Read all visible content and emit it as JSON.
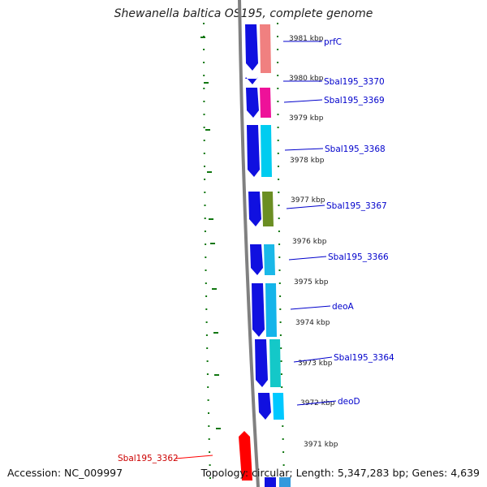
{
  "title": "Shewanella baltica OS195, complete genome",
  "footer": {
    "accession": "Accession: NC_009997",
    "summary": "Topology: circular; Length: 5,347,283 bp; Genes: 4,639"
  },
  "colors": {
    "backbone": "#808080",
    "forward_strand": "#1010e0",
    "reverse_strand": "#ff0000",
    "gene_label": "#0000cc",
    "reverse_label": "#cc0000",
    "tick_marks": "#117711"
  },
  "ticks": [
    "3981 kbp",
    "3980 kbp",
    "3979 kbp",
    "3978 kbp",
    "3977 kbp",
    "3976 kbp",
    "3975 kbp",
    "3974 kbp",
    "3973 kbp",
    "3972 kbp",
    "3971 kbp"
  ],
  "genes": [
    {
      "label": "prfC",
      "strand": "forward",
      "cog_color": "#f08080"
    },
    {
      "label": "Sbal195_3370",
      "strand": "forward",
      "cog_color": "#ffffff"
    },
    {
      "label": "Sbal195_3369",
      "strand": "forward",
      "cog_color": "#ee1199"
    },
    {
      "label": "Sbal195_3368",
      "strand": "forward",
      "cog_color": "#00ccf0"
    },
    {
      "label": "Sbal195_3367",
      "strand": "forward",
      "cog_color": "#6b8e23"
    },
    {
      "label": "Sbal195_3366",
      "strand": "forward",
      "cog_color": "#1ab8e8"
    },
    {
      "label": "deoA",
      "strand": "forward",
      "cog_color": "#14b4ea"
    },
    {
      "label": "Sbal195_3364",
      "strand": "forward",
      "cog_color": "#14c8c8"
    },
    {
      "label": "deoD",
      "strand": "forward",
      "cog_color": "#00c8ff"
    },
    {
      "label": "Sbal195_3362",
      "strand": "reverse",
      "cog_color": "#ff0000"
    }
  ]
}
